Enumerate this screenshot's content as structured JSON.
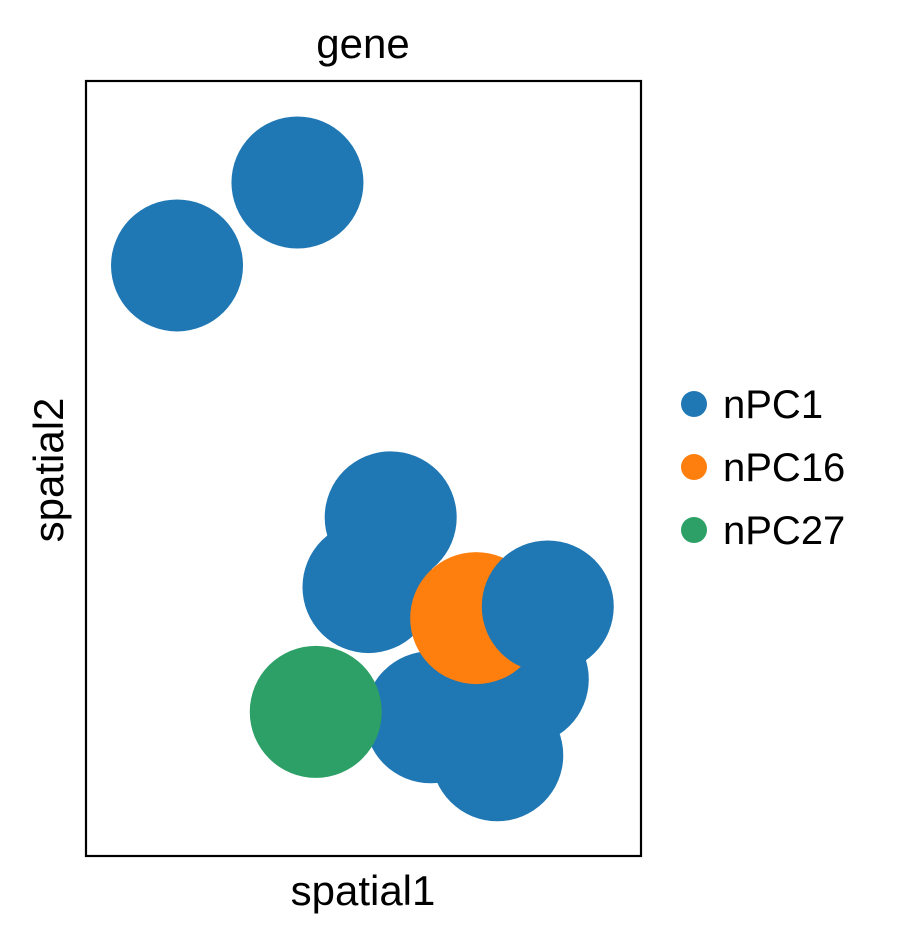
{
  "chart_data": {
    "type": "scatter",
    "title": "gene",
    "xlabel": "spatial1",
    "ylabel": "spatial2",
    "xlim": [
      0,
      100
    ],
    "ylim": [
      0,
      100
    ],
    "xticks": false,
    "yticks": false,
    "grid": false,
    "legend_placement": "right",
    "categories": [
      {
        "name": "nPC1",
        "color": "#1f77b4"
      },
      {
        "name": "nPC16",
        "color": "#ff7f0e"
      },
      {
        "name": "nPC27",
        "color": "#2ca066"
      }
    ],
    "points": [
      {
        "x": 38.1,
        "y": 86.9,
        "category": "nPC1"
      },
      {
        "x": 16.4,
        "y": 76.2,
        "category": "nPC1"
      },
      {
        "x": 54.9,
        "y": 43.7,
        "category": "nPC1"
      },
      {
        "x": 50.9,
        "y": 34.7,
        "category": "nPC1"
      },
      {
        "x": 62.1,
        "y": 17.9,
        "category": "nPC1"
      },
      {
        "x": 78.7,
        "y": 22.8,
        "category": "nPC1"
      },
      {
        "x": 74.1,
        "y": 13.0,
        "category": "nPC1"
      },
      {
        "x": 70.3,
        "y": 30.7,
        "category": "nPC16"
      },
      {
        "x": 83.2,
        "y": 32.2,
        "category": "nPC1"
      },
      {
        "x": 41.4,
        "y": 18.6,
        "category": "nPC27"
      }
    ]
  }
}
